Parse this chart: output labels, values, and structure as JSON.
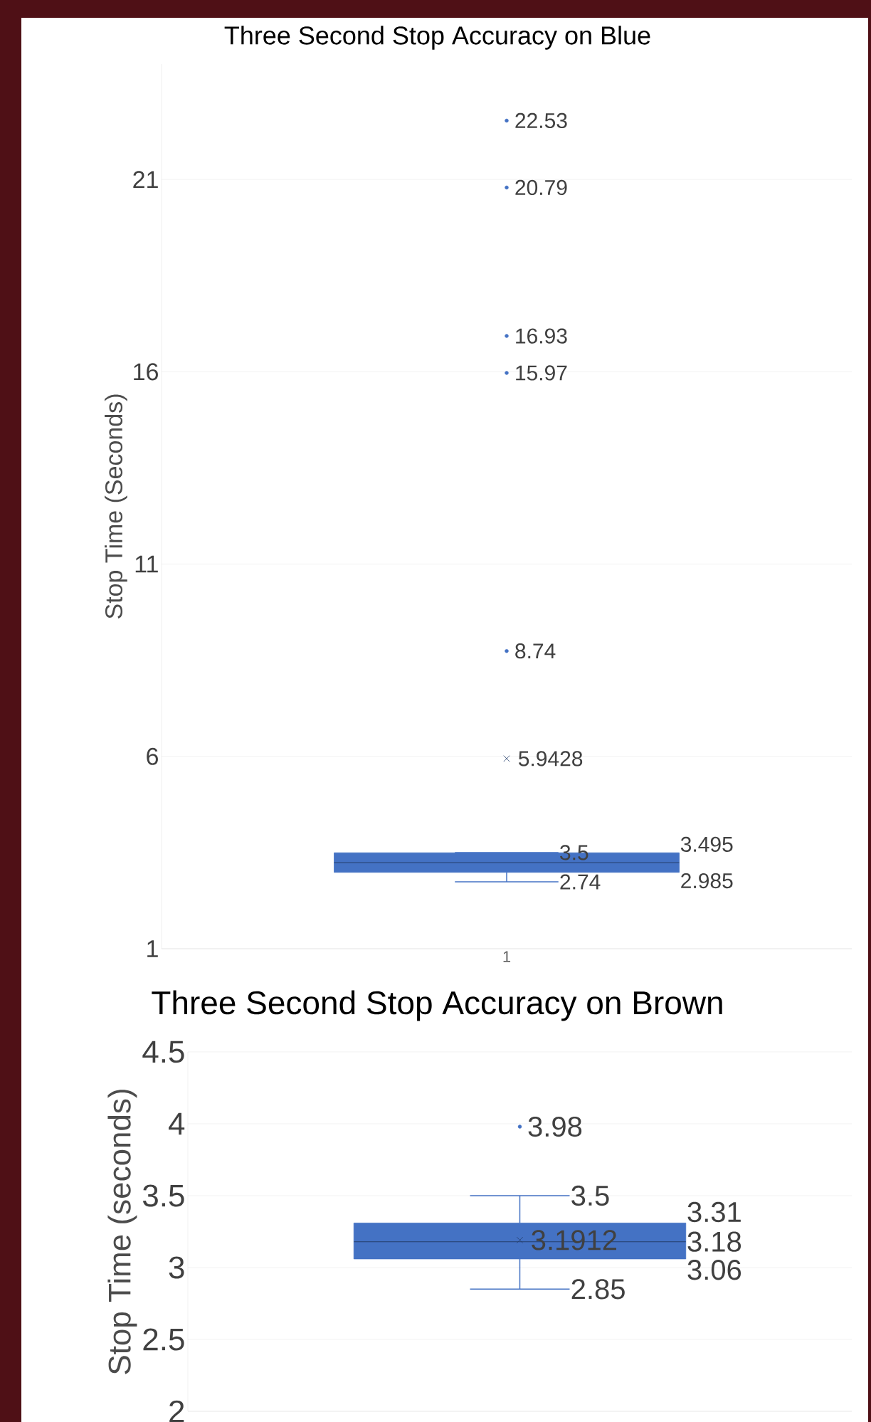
{
  "chart_data": [
    {
      "type": "box",
      "title": "Three Second Stop Accuracy on Blue",
      "ylabel": "Stop Time (Seconds)",
      "categories": [
        "1"
      ],
      "series": [
        {
          "color": "#4472c4",
          "boxes": [
            {
              "low": 2.74,
              "q1": 2.985,
              "median": 3.24,
              "q3": 3.495,
              "high": 3.5,
              "mean": 5.9428,
              "outliers": [
                8.74,
                15.97,
                16.93,
                20.79,
                22.53
              ]
            }
          ]
        }
      ],
      "ylim": [
        1,
        24
      ],
      "yticks": [
        1,
        6,
        11,
        16,
        21
      ],
      "grid": "y",
      "annotations": [
        "22.53",
        "20.79",
        "16.93",
        "15.97",
        "8.74",
        "5.9428",
        "3.5",
        "3.495",
        "2.985",
        "2.74"
      ]
    },
    {
      "type": "box",
      "title": "Three Second Stop Accuracy on Brown",
      "ylabel": "Stop Time (seconds)",
      "categories": [
        null
      ],
      "series": [
        {
          "color": "#4472c4",
          "boxes": [
            {
              "low": 2.85,
              "q1": 3.06,
              "median": 3.18,
              "q3": 3.31,
              "high": 3.5,
              "mean": 3.1912,
              "outliers": [
                3.98
              ]
            }
          ]
        }
      ],
      "ylim": [
        2,
        4.5
      ],
      "yticks": [
        2,
        2.5,
        3,
        3.5,
        4,
        4.5
      ],
      "grid": "y",
      "annotations": [
        "3.98",
        "3.5",
        "3.31",
        "3.1912",
        "3.18",
        "3.06",
        "2.85"
      ]
    }
  ]
}
